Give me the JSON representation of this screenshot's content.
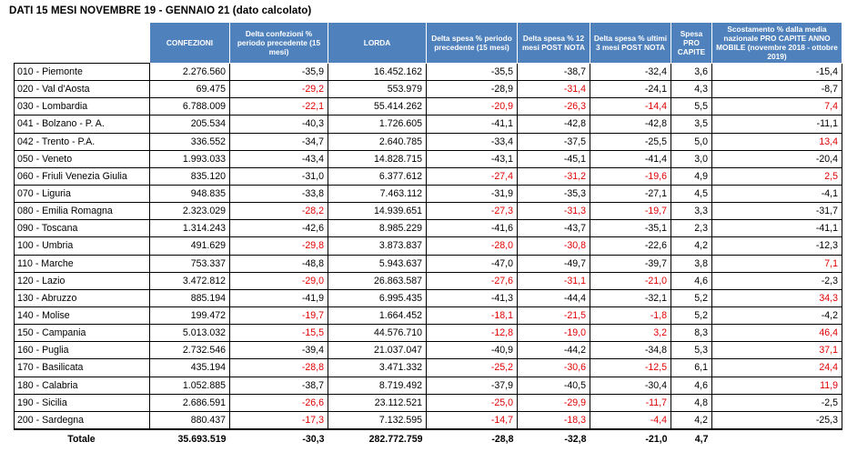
{
  "title": "DATI 15 MESI NOVEMBRE 19 - GENNAIO 21 (dato calcolato)",
  "headers": [
    "",
    "CONFEZIONI",
    "Delta confezioni % periodo precedente (15 mesi)",
    "LORDA",
    "Delta spesa % periodo precedente (15 mesi)",
    "Delta spesa % 12 mesi POST NOTA",
    "Delta spesa % ultimi 3 mesi POST NOTA",
    "Spesa PRO CAPITE",
    "Scostamento % dalla media nazionale PRO CAPITE ANNO MOBILE (novembre 2018 - ottobre 2019)"
  ],
  "rows": [
    {
      "region": "010 - Piemonte",
      "conf": "2.276.560",
      "dconf": "-35,9",
      "lorda": "16.452.162",
      "dspesa": "-35,5",
      "d12": "-38,7",
      "d3": "-32,4",
      "procap": "3,6",
      "scost": "-15,4",
      "red": [
        false,
        false,
        false,
        false,
        false
      ]
    },
    {
      "region": "020 - Val d'Aosta",
      "conf": "69.475",
      "dconf": "-29,2",
      "lorda": "553.979",
      "dspesa": "-28,9",
      "d12": "-31,4",
      "d3": "-24,1",
      "procap": "4,3",
      "scost": "-8,7",
      "red": [
        true,
        false,
        true,
        false,
        false
      ]
    },
    {
      "region": "030 - Lombardia",
      "conf": "6.788.009",
      "dconf": "-22,1",
      "lorda": "55.414.262",
      "dspesa": "-20,9",
      "d12": "-26,3",
      "d3": "-14,4",
      "procap": "5,5",
      "scost": "7,4",
      "red": [
        true,
        true,
        true,
        true,
        true
      ]
    },
    {
      "region": "041 - Bolzano - P. A.",
      "conf": "205.534",
      "dconf": "-40,3",
      "lorda": "1.726.605",
      "dspesa": "-41,1",
      "d12": "-42,8",
      "d3": "-42,8",
      "procap": "3,5",
      "scost": "-11,1",
      "red": [
        false,
        false,
        false,
        false,
        false
      ]
    },
    {
      "region": "042 - Trento -  P.A.",
      "conf": "336.552",
      "dconf": "-34,7",
      "lorda": "2.640.785",
      "dspesa": "-33,4",
      "d12": "-37,5",
      "d3": "-25,5",
      "procap": "5,0",
      "scost": "13,4",
      "red": [
        false,
        false,
        false,
        false,
        true
      ]
    },
    {
      "region": "050 - Veneto",
      "conf": "1.993.033",
      "dconf": "-43,4",
      "lorda": "14.828.715",
      "dspesa": "-43,1",
      "d12": "-45,1",
      "d3": "-41,4",
      "procap": "3,0",
      "scost": "-20,4",
      "red": [
        false,
        false,
        false,
        false,
        false
      ]
    },
    {
      "region": "060 - Friuli Venezia Giulia",
      "conf": "835.120",
      "dconf": "-31,0",
      "lorda": "6.377.612",
      "dspesa": "-27,4",
      "d12": "-31,2",
      "d3": "-19,6",
      "procap": "4,9",
      "scost": "2,5",
      "red": [
        false,
        true,
        true,
        true,
        true
      ]
    },
    {
      "region": "070 - Liguria",
      "conf": "948.835",
      "dconf": "-33,8",
      "lorda": "7.463.112",
      "dspesa": "-31,9",
      "d12": "-35,3",
      "d3": "-27,1",
      "procap": "4,5",
      "scost": "-4,1",
      "red": [
        false,
        false,
        false,
        false,
        false
      ]
    },
    {
      "region": "080 - Emilia Romagna",
      "conf": "2.323.029",
      "dconf": "-28,2",
      "lorda": "14.939.651",
      "dspesa": "-27,3",
      "d12": "-31,3",
      "d3": "-19,7",
      "procap": "3,3",
      "scost": "-31,7",
      "red": [
        true,
        true,
        true,
        true,
        false
      ]
    },
    {
      "region": "090 - Toscana",
      "conf": "1.314.243",
      "dconf": "-42,6",
      "lorda": "8.985.229",
      "dspesa": "-41,6",
      "d12": "-43,7",
      "d3": "-35,1",
      "procap": "2,3",
      "scost": "-41,1",
      "red": [
        false,
        false,
        false,
        false,
        false
      ]
    },
    {
      "region": "100 - Umbria",
      "conf": "491.629",
      "dconf": "-29,8",
      "lorda": "3.873.837",
      "dspesa": "-28,0",
      "d12": "-30,8",
      "d3": "-22,6",
      "procap": "4,2",
      "scost": "-12,3",
      "red": [
        true,
        true,
        true,
        false,
        false
      ]
    },
    {
      "region": "110 - Marche",
      "conf": "753.337",
      "dconf": "-48,8",
      "lorda": "5.943.637",
      "dspesa": "-47,0",
      "d12": "-49,7",
      "d3": "-39,7",
      "procap": "3,8",
      "scost": "7,1",
      "red": [
        false,
        false,
        false,
        false,
        true
      ]
    },
    {
      "region": "120 - Lazio",
      "conf": "3.472.812",
      "dconf": "-29,0",
      "lorda": "26.863.587",
      "dspesa": "-27,6",
      "d12": "-31,1",
      "d3": "-21,0",
      "procap": "4,6",
      "scost": "-2,3",
      "red": [
        true,
        true,
        true,
        true,
        false
      ]
    },
    {
      "region": "130 - Abruzzo",
      "conf": "885.194",
      "dconf": "-41,9",
      "lorda": "6.995.435",
      "dspesa": "-41,3",
      "d12": "-44,4",
      "d3": "-32,1",
      "procap": "5,2",
      "scost": "34,3",
      "red": [
        false,
        false,
        false,
        false,
        true
      ]
    },
    {
      "region": "140 - Molise",
      "conf": "199.472",
      "dconf": "-19,7",
      "lorda": "1.664.452",
      "dspesa": "-18,1",
      "d12": "-21,5",
      "d3": "-1,8",
      "procap": "5,2",
      "scost": "-4,2",
      "red": [
        true,
        true,
        true,
        true,
        false
      ]
    },
    {
      "region": "150 - Campania",
      "conf": "5.013.032",
      "dconf": "-15,5",
      "lorda": "44.576.710",
      "dspesa": "-12,8",
      "d12": "-19,0",
      "d3": "3,2",
      "procap": "8,3",
      "scost": "46,4",
      "red": [
        true,
        true,
        true,
        true,
        true
      ]
    },
    {
      "region": "160 - Puglia",
      "conf": "2.732.546",
      "dconf": "-39,4",
      "lorda": "21.037.047",
      "dspesa": "-40,9",
      "d12": "-44,2",
      "d3": "-34,8",
      "procap": "5,3",
      "scost": "37,1",
      "red": [
        false,
        false,
        false,
        false,
        true
      ]
    },
    {
      "region": "170 - Basilicata",
      "conf": "435.194",
      "dconf": "-28,8",
      "lorda": "3.471.332",
      "dspesa": "-25,2",
      "d12": "-30,6",
      "d3": "-12,5",
      "procap": "6,1",
      "scost": "24,4",
      "red": [
        true,
        true,
        true,
        true,
        true
      ]
    },
    {
      "region": "180 - Calabria",
      "conf": "1.052.885",
      "dconf": "-38,7",
      "lorda": "8.719.492",
      "dspesa": "-37,9",
      "d12": "-40,5",
      "d3": "-30,4",
      "procap": "4,6",
      "scost": "11,9",
      "red": [
        false,
        false,
        false,
        false,
        true
      ]
    },
    {
      "region": "190 - Sicilia",
      "conf": "2.686.591",
      "dconf": "-26,6",
      "lorda": "23.112.521",
      "dspesa": "-25,0",
      "d12": "-29,9",
      "d3": "-11,7",
      "procap": "4,8",
      "scost": "-2,5",
      "red": [
        true,
        true,
        true,
        true,
        false
      ]
    },
    {
      "region": "200 - Sardegna",
      "conf": "880.437",
      "dconf": "-17,3",
      "lorda": "7.132.595",
      "dspesa": "-14,7",
      "d12": "-18,3",
      "d3": "-4,4",
      "procap": "4,2",
      "scost": "-25,3",
      "red": [
        true,
        true,
        true,
        true,
        false
      ]
    }
  ],
  "total": {
    "label": "Totale",
    "conf": "35.693.519",
    "dconf": "-30,3",
    "lorda": "282.772.759",
    "dspesa": "-28,8",
    "d12": "-32,8",
    "d3": "-21,0",
    "procap": "4,7",
    "scost": ""
  },
  "colors": {
    "header_bg": "#4f81bd",
    "negative_highlight": "#e00000"
  }
}
